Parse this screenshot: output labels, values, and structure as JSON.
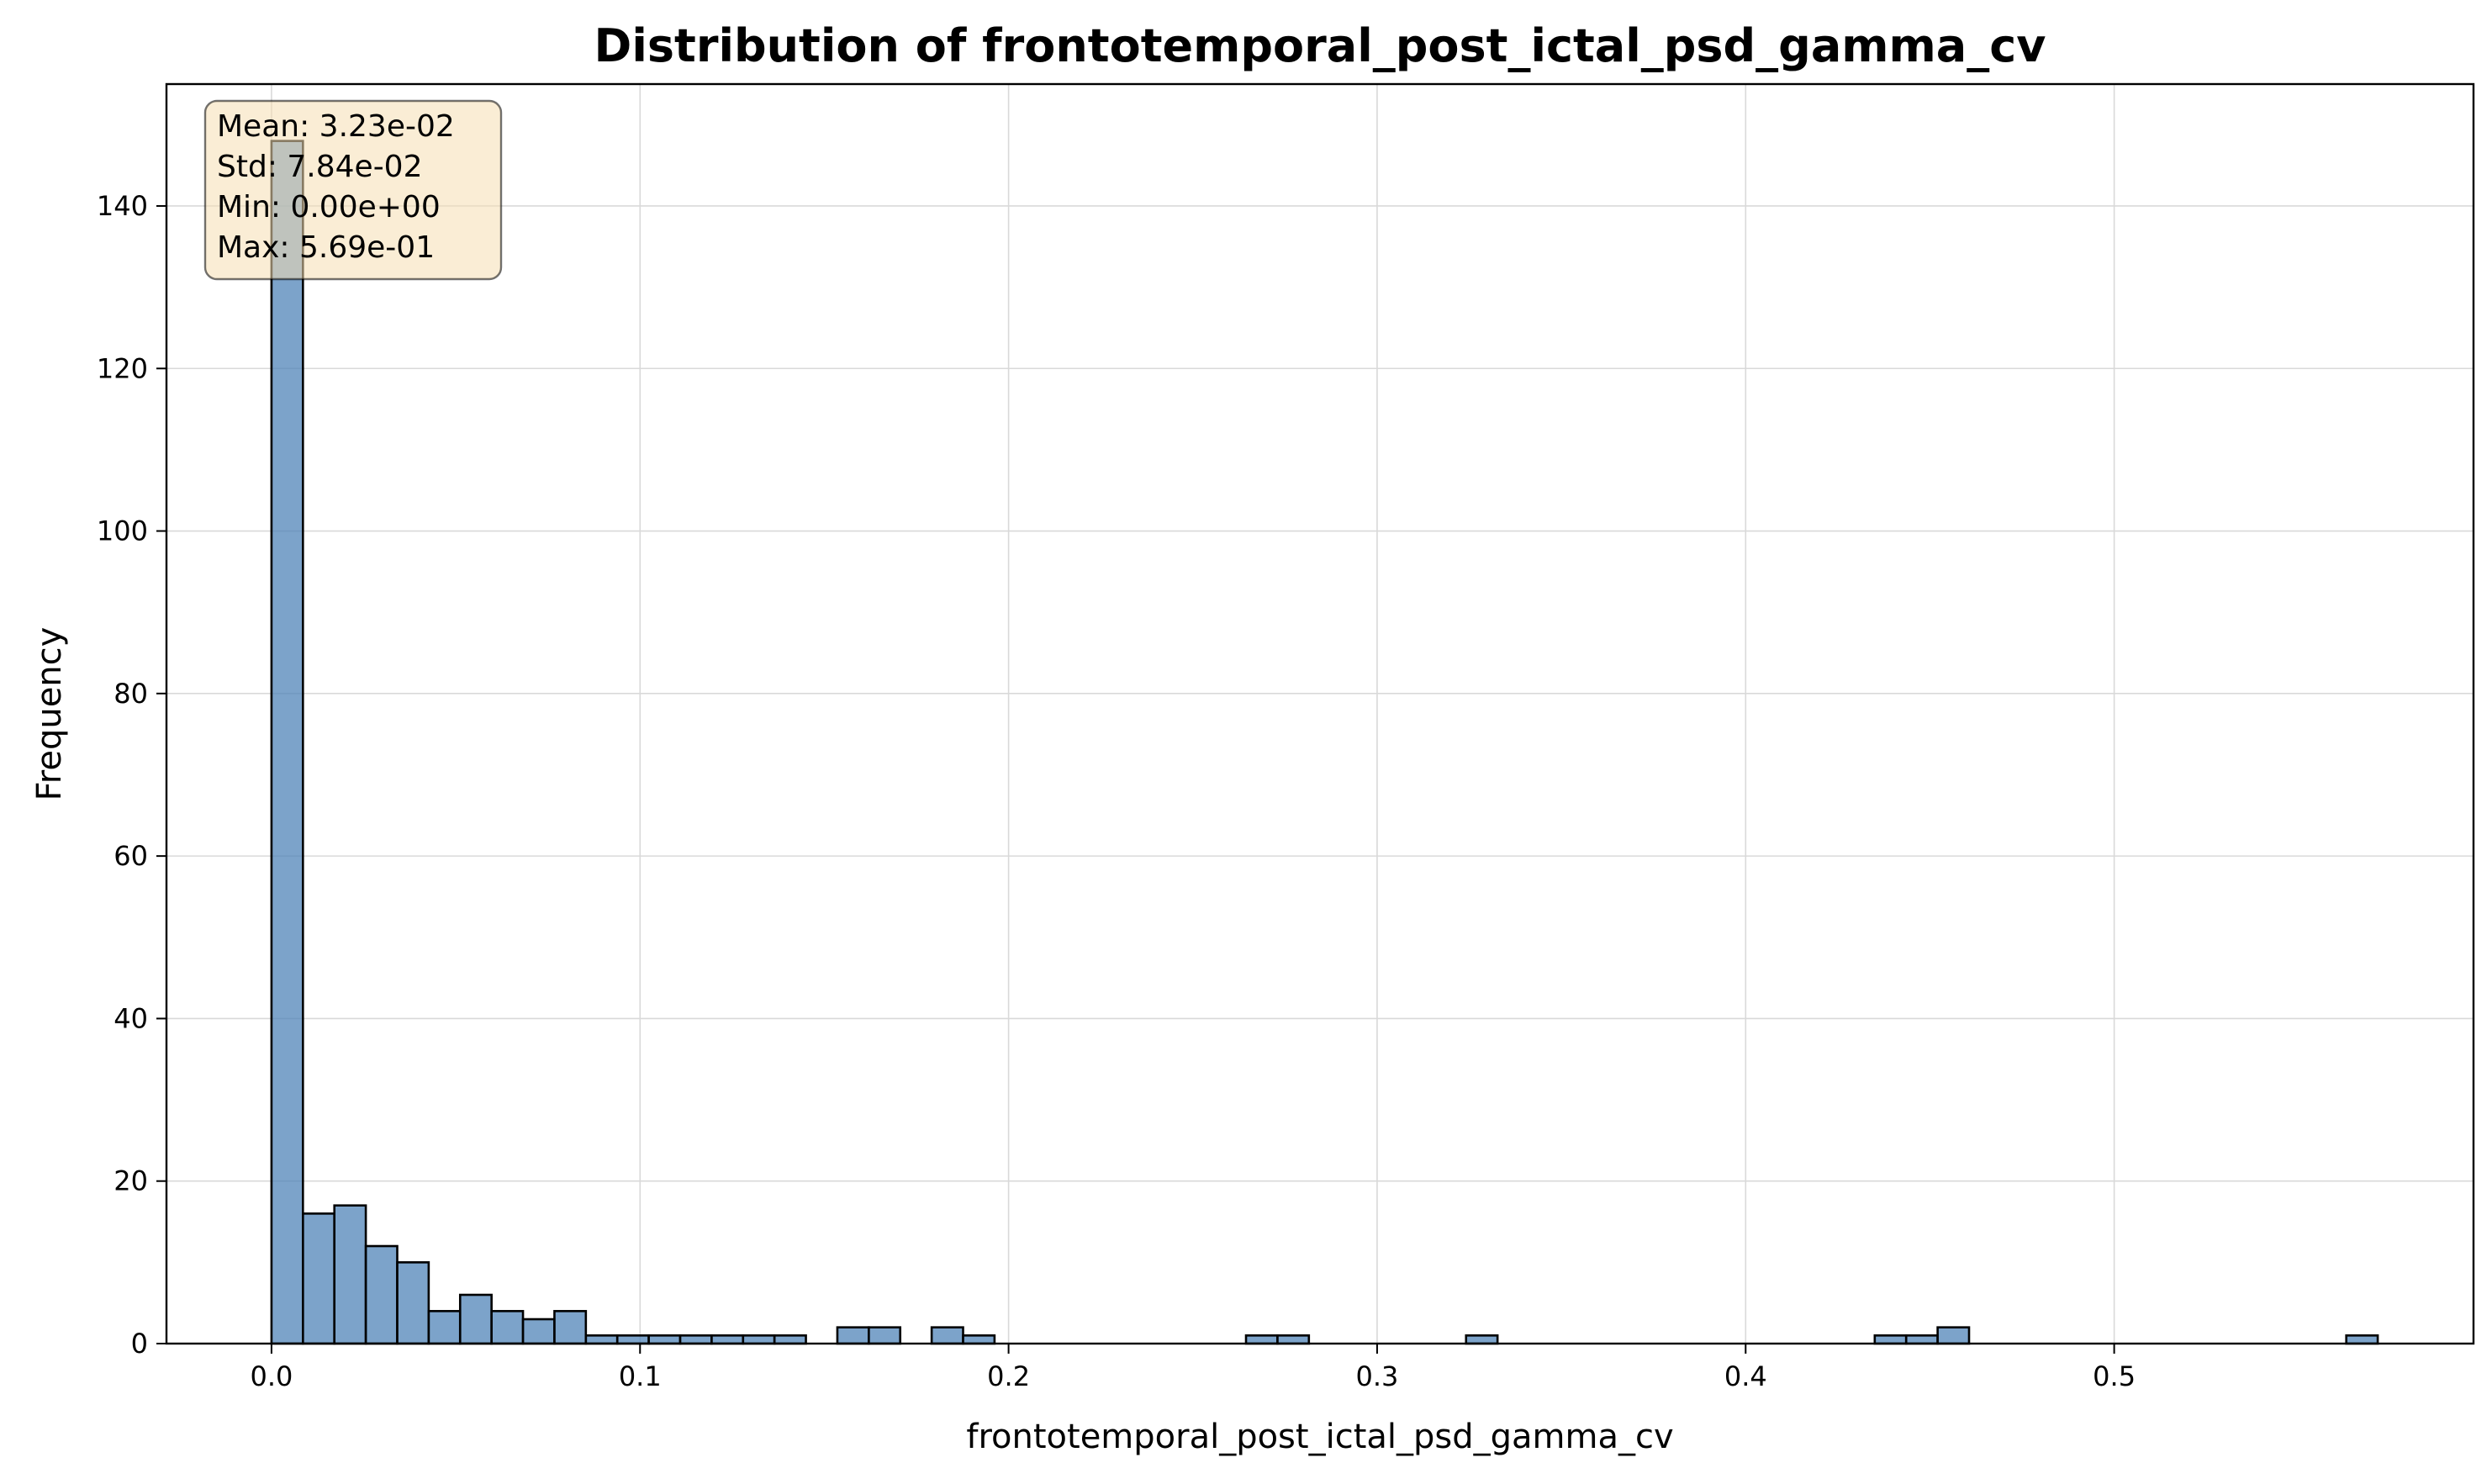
{
  "chart_data": {
    "type": "bar",
    "title": "Distribution of frontotemporal_post_ictal_psd_gamma_cv",
    "xlabel": "frontotemporal_post_ictal_psd_gamma_cv",
    "ylabel": "Frequency",
    "xlim": [
      -0.0285,
      0.5975
    ],
    "ylim": [
      0,
      155
    ],
    "xticks": [
      0.0,
      0.1,
      0.2,
      0.3,
      0.4,
      0.5
    ],
    "xtick_labels": [
      "0.0",
      "0.1",
      "0.2",
      "0.3",
      "0.4",
      "0.5"
    ],
    "yticks": [
      0,
      20,
      40,
      60,
      80,
      100,
      120,
      140
    ],
    "ytick_labels": [
      "0",
      "20",
      "40",
      "60",
      "80",
      "100",
      "120",
      "140"
    ],
    "grid": true,
    "bin_start": 0.0,
    "bin_width": 0.00853,
    "values": [
      148,
      16,
      17,
      12,
      10,
      4,
      6,
      4,
      3,
      4,
      1,
      1,
      1,
      1,
      1,
      1,
      1,
      0,
      2,
      2,
      0,
      2,
      1,
      0,
      0,
      0,
      0,
      0,
      0,
      0,
      0,
      1,
      1,
      0,
      0,
      0,
      0,
      0,
      1,
      0,
      0,
      0,
      0,
      0,
      0,
      0,
      0,
      0,
      0,
      0,
      0,
      1,
      1,
      2,
      0,
      0,
      0,
      0,
      0,
      0,
      0,
      0,
      0,
      0,
      0,
      0,
      1
    ],
    "bar_color": "#4a7fb5",
    "edge_color": "#000000",
    "stats_box": {
      "lines": [
        "Mean: 3.23e-02",
        "Std: 7.84e-02",
        "Min: 0.00e+00",
        "Max: 5.69e-01"
      ],
      "placement": "top-left",
      "background": "#f5deb3"
    }
  }
}
